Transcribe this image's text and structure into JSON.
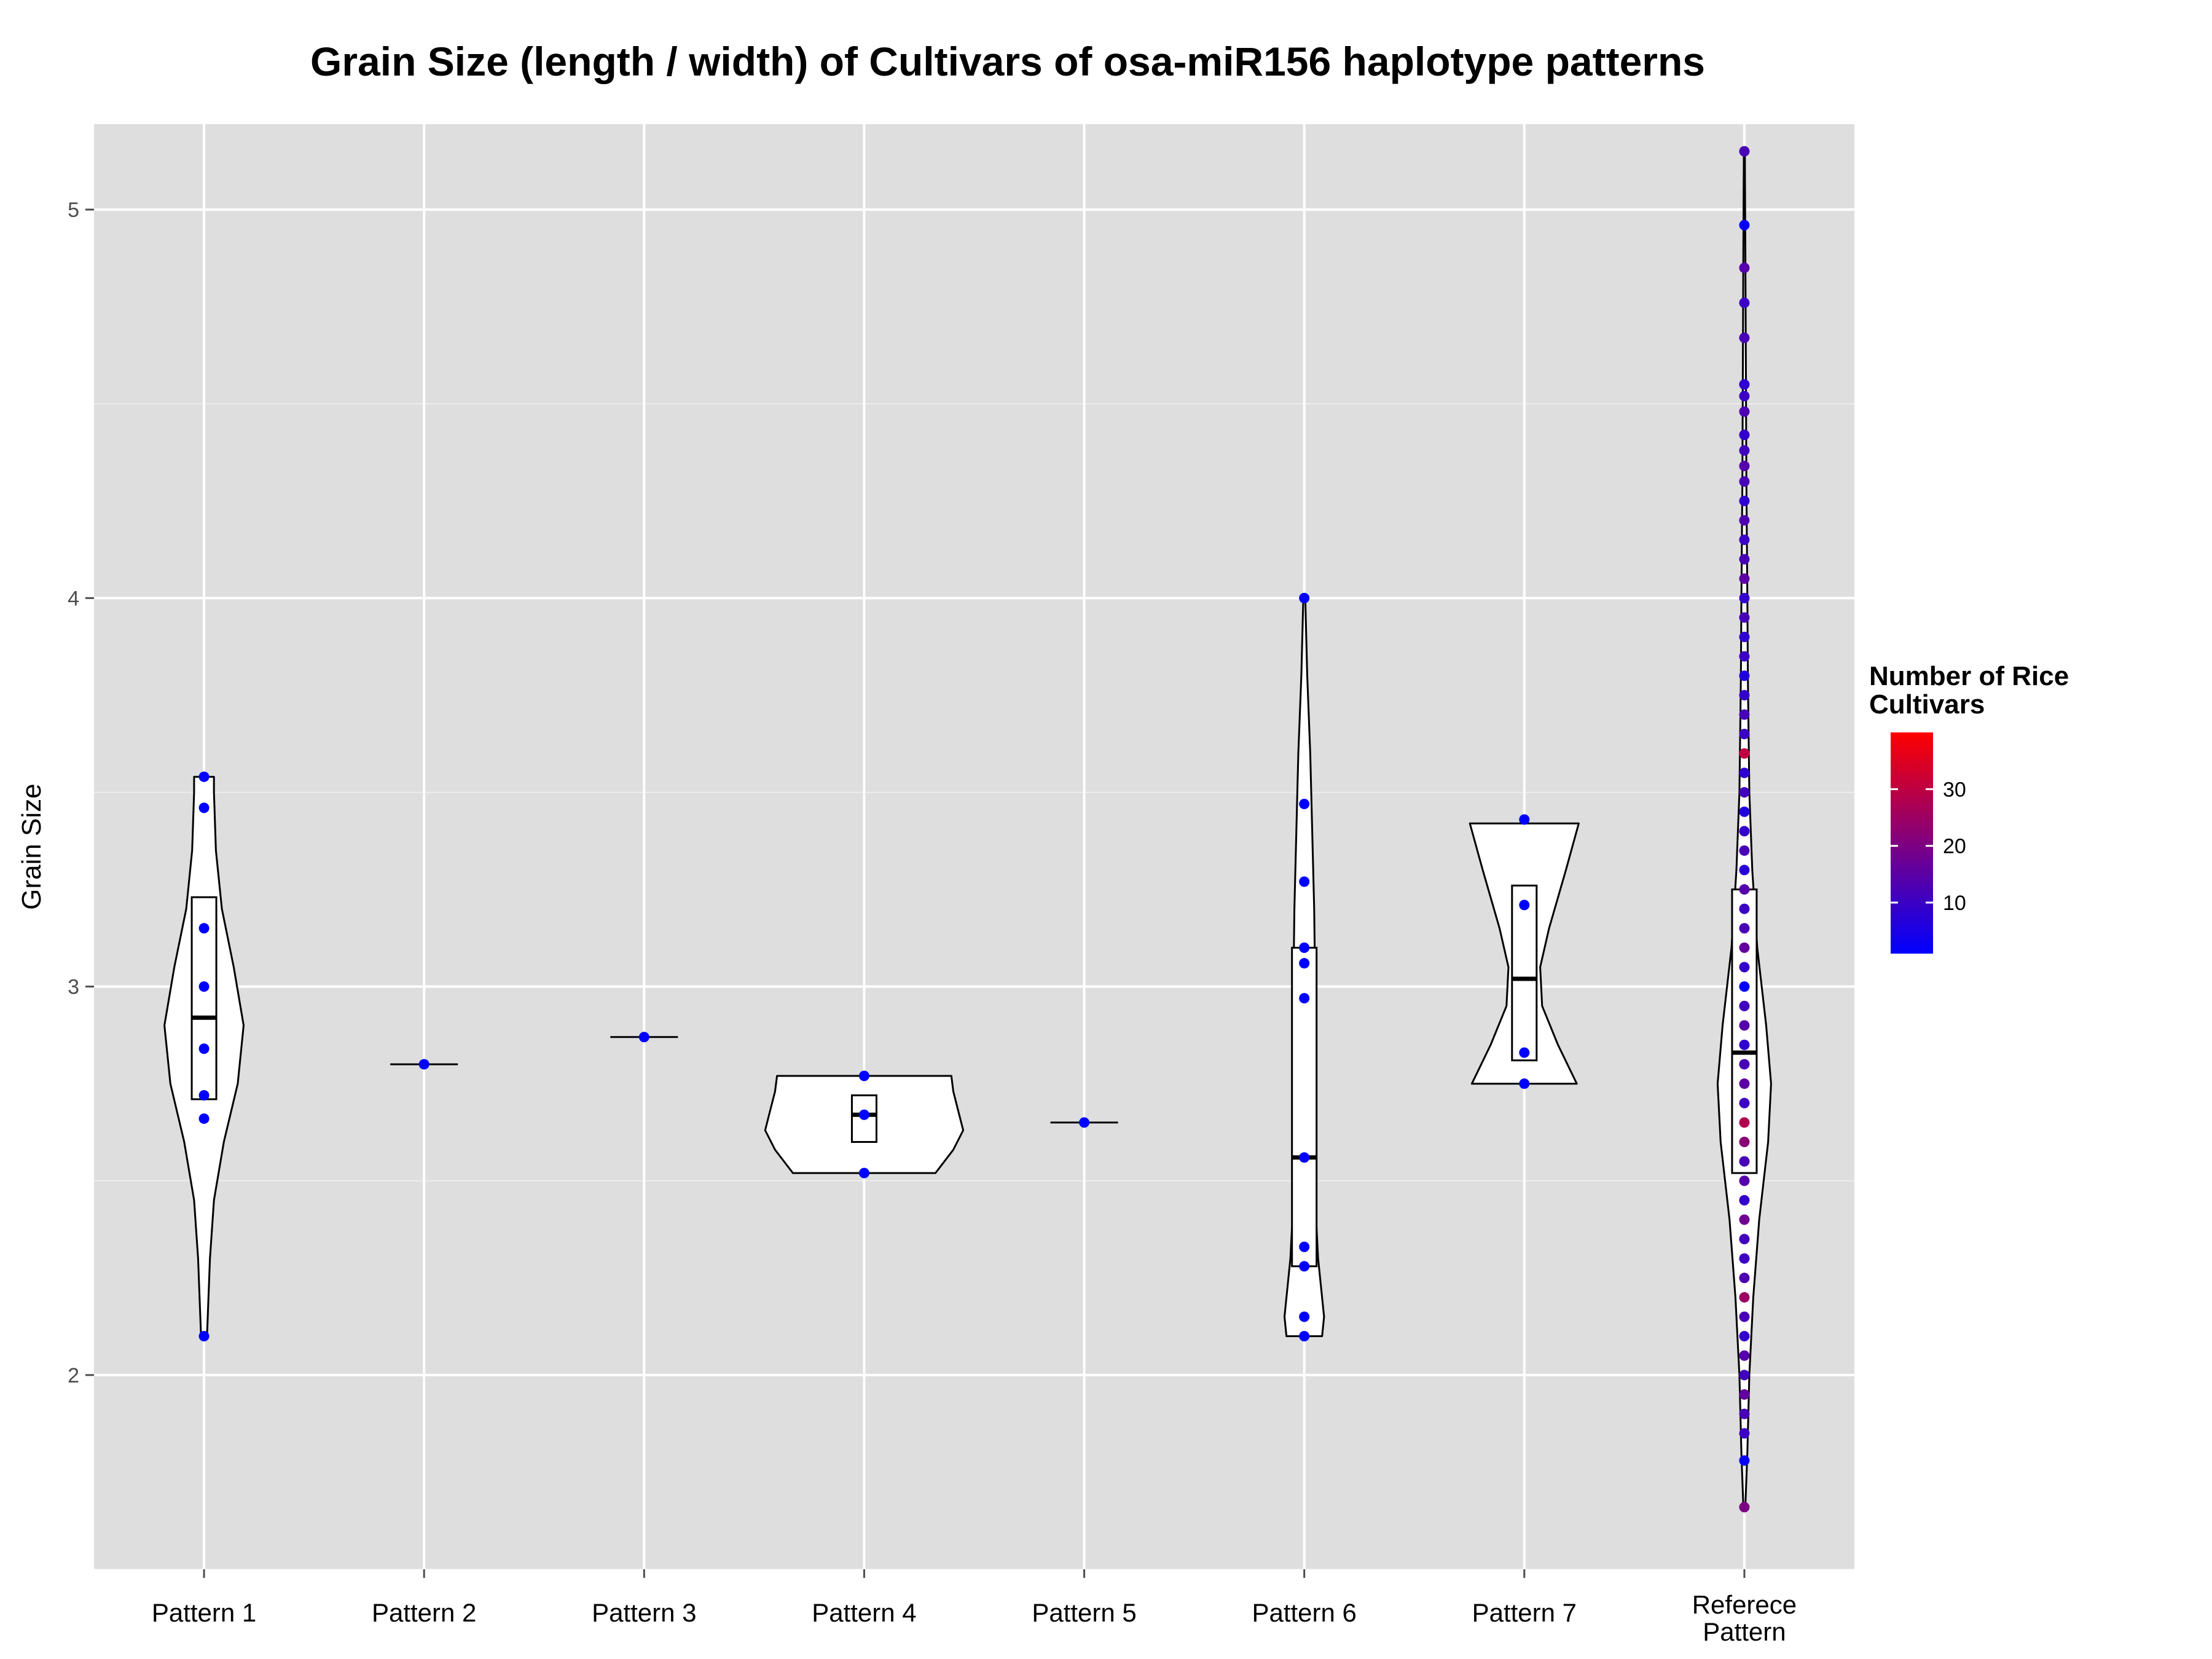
{
  "chart_data": {
    "type": "violin",
    "title": "Grain Size (length / width) of Cultivars of osa-miR156 haplotype patterns",
    "xlabel": "",
    "ylabel": "Grain Size",
    "ylim": [
      1.5,
      5.22
    ],
    "y_ticks": [
      2,
      3,
      4,
      5
    ],
    "grid": true,
    "background": "#dedede",
    "point_color_low": "#0000ff",
    "point_color_high": "#ff0000",
    "categories": [
      "Pattern 1",
      "Pattern 2",
      "Pattern 3",
      "Pattern 4",
      "Pattern 5",
      "Pattern 6",
      "Pattern 7",
      "Referece Pattern"
    ],
    "legend": {
      "title": "Number of Rice Cultivars",
      "position": "right",
      "range": [
        1,
        40
      ],
      "ticks": [
        10,
        20,
        30
      ]
    },
    "series": [
      {
        "category": "Pattern 1",
        "box": {
          "q1": 2.71,
          "median": 2.92,
          "q3": 3.23
        },
        "violin": [
          [
            2.1,
            0.03
          ],
          [
            2.3,
            0.06
          ],
          [
            2.45,
            0.1
          ],
          [
            2.6,
            0.2
          ],
          [
            2.75,
            0.34
          ],
          [
            2.9,
            0.4
          ],
          [
            3.05,
            0.3
          ],
          [
            3.2,
            0.18
          ],
          [
            3.35,
            0.12
          ],
          [
            3.5,
            0.1
          ],
          [
            3.54,
            0.1
          ]
        ],
        "points": [
          {
            "y": 3.54,
            "n": 1
          },
          {
            "y": 3.46,
            "n": 1
          },
          {
            "y": 3.15,
            "n": 1
          },
          {
            "y": 3.0,
            "n": 1
          },
          {
            "y": 2.84,
            "n": 1
          },
          {
            "y": 2.72,
            "n": 1
          },
          {
            "y": 2.66,
            "n": 1
          },
          {
            "y": 2.1,
            "n": 1
          }
        ]
      },
      {
        "category": "Pattern 2",
        "box": {
          "q1": 2.8,
          "median": 2.8,
          "q3": 2.8
        },
        "violin": [],
        "points": [
          {
            "y": 2.8,
            "n": 1
          }
        ]
      },
      {
        "category": "Pattern 3",
        "box": {
          "q1": 2.87,
          "median": 2.87,
          "q3": 2.87
        },
        "violin": [],
        "points": [
          {
            "y": 2.87,
            "n": 1
          }
        ]
      },
      {
        "category": "Pattern 4",
        "box": {
          "q1": 2.6,
          "median": 2.67,
          "q3": 2.72
        },
        "violin": [
          [
            2.52,
            0.72
          ],
          [
            2.58,
            0.9
          ],
          [
            2.63,
            1.0
          ],
          [
            2.68,
            0.95
          ],
          [
            2.73,
            0.9
          ],
          [
            2.77,
            0.88
          ]
        ],
        "points": [
          {
            "y": 2.77,
            "n": 1
          },
          {
            "y": 2.67,
            "n": 1
          },
          {
            "y": 2.52,
            "n": 1
          }
        ]
      },
      {
        "category": "Pattern 5",
        "box": {
          "q1": 2.65,
          "median": 2.65,
          "q3": 2.65
        },
        "violin": [],
        "points": [
          {
            "y": 2.65,
            "n": 1
          }
        ]
      },
      {
        "category": "Pattern 6",
        "box": {
          "q1": 2.28,
          "median": 2.56,
          "q3": 3.1
        },
        "violin": [
          [
            2.1,
            0.18
          ],
          [
            2.15,
            0.2
          ],
          [
            2.3,
            0.14
          ],
          [
            2.45,
            0.11
          ],
          [
            2.6,
            0.1
          ],
          [
            2.8,
            0.1
          ],
          [
            3.0,
            0.11
          ],
          [
            3.2,
            0.1
          ],
          [
            3.4,
            0.08
          ],
          [
            3.6,
            0.06
          ],
          [
            3.8,
            0.03
          ],
          [
            4.0,
            0.01
          ]
        ],
        "points": [
          {
            "y": 4.0,
            "n": 1
          },
          {
            "y": 3.47,
            "n": 1
          },
          {
            "y": 3.27,
            "n": 1
          },
          {
            "y": 3.1,
            "n": 1
          },
          {
            "y": 3.06,
            "n": 1
          },
          {
            "y": 2.97,
            "n": 1
          },
          {
            "y": 2.56,
            "n": 1
          },
          {
            "y": 2.33,
            "n": 1
          },
          {
            "y": 2.28,
            "n": 1
          },
          {
            "y": 2.15,
            "n": 1
          },
          {
            "y": 2.1,
            "n": 1
          }
        ]
      },
      {
        "category": "Pattern 7",
        "box": {
          "q1": 2.81,
          "median": 3.02,
          "q3": 3.26
        },
        "violin": [
          [
            2.75,
            0.53
          ],
          [
            2.85,
            0.34
          ],
          [
            2.95,
            0.18
          ],
          [
            3.05,
            0.16
          ],
          [
            3.15,
            0.25
          ],
          [
            3.3,
            0.42
          ],
          [
            3.42,
            0.55
          ]
        ],
        "points": [
          {
            "y": 3.43,
            "n": 1
          },
          {
            "y": 3.21,
            "n": 1
          },
          {
            "y": 2.83,
            "n": 1
          },
          {
            "y": 2.75,
            "n": 1
          }
        ]
      },
      {
        "category": "Referece Pattern",
        "box": {
          "q1": 2.52,
          "median": 2.83,
          "q3": 3.25
        },
        "violin": [
          [
            1.66,
            0.01
          ],
          [
            1.8,
            0.03
          ],
          [
            2.0,
            0.05
          ],
          [
            2.2,
            0.09
          ],
          [
            2.4,
            0.15
          ],
          [
            2.6,
            0.24
          ],
          [
            2.75,
            0.27
          ],
          [
            2.9,
            0.22
          ],
          [
            3.1,
            0.13
          ],
          [
            3.3,
            0.08
          ],
          [
            3.5,
            0.05
          ],
          [
            3.8,
            0.035
          ],
          [
            4.0,
            0.03
          ],
          [
            4.3,
            0.02
          ],
          [
            4.6,
            0.015
          ],
          [
            4.9,
            0.01
          ],
          [
            5.15,
            0.005
          ]
        ],
        "points": [
          {
            "y": 5.15,
            "n": 12
          },
          {
            "y": 4.96,
            "n": 2
          },
          {
            "y": 4.85,
            "n": 14
          },
          {
            "y": 4.76,
            "n": 10
          },
          {
            "y": 4.67,
            "n": 12
          },
          {
            "y": 4.55,
            "n": 8
          },
          {
            "y": 4.52,
            "n": 10
          },
          {
            "y": 4.48,
            "n": 13
          },
          {
            "y": 4.42,
            "n": 9
          },
          {
            "y": 4.38,
            "n": 11
          },
          {
            "y": 4.34,
            "n": 14
          },
          {
            "y": 4.3,
            "n": 12
          },
          {
            "y": 4.25,
            "n": 8
          },
          {
            "y": 4.2,
            "n": 13
          },
          {
            "y": 4.15,
            "n": 10
          },
          {
            "y": 4.1,
            "n": 12
          },
          {
            "y": 4.05,
            "n": 15
          },
          {
            "y": 4.0,
            "n": 9
          },
          {
            "y": 3.95,
            "n": 12
          },
          {
            "y": 3.9,
            "n": 8
          },
          {
            "y": 3.85,
            "n": 10
          },
          {
            "y": 3.8,
            "n": 6
          },
          {
            "y": 3.75,
            "n": 9
          },
          {
            "y": 3.7,
            "n": 12
          },
          {
            "y": 3.65,
            "n": 10
          },
          {
            "y": 3.6,
            "n": 30
          },
          {
            "y": 3.55,
            "n": 8
          },
          {
            "y": 3.5,
            "n": 11
          },
          {
            "y": 3.45,
            "n": 6
          },
          {
            "y": 3.4,
            "n": 9
          },
          {
            "y": 3.35,
            "n": 12
          },
          {
            "y": 3.3,
            "n": 7
          },
          {
            "y": 3.25,
            "n": 14
          },
          {
            "y": 3.2,
            "n": 10
          },
          {
            "y": 3.15,
            "n": 12
          },
          {
            "y": 3.1,
            "n": 16
          },
          {
            "y": 3.05,
            "n": 9
          },
          {
            "y": 3.0,
            "n": 1
          },
          {
            "y": 2.95,
            "n": 11
          },
          {
            "y": 2.9,
            "n": 14
          },
          {
            "y": 2.85,
            "n": 8
          },
          {
            "y": 2.8,
            "n": 12
          },
          {
            "y": 2.75,
            "n": 15
          },
          {
            "y": 2.7,
            "n": 10
          },
          {
            "y": 2.65,
            "n": 28
          },
          {
            "y": 2.6,
            "n": 22
          },
          {
            "y": 2.55,
            "n": 12
          },
          {
            "y": 2.5,
            "n": 14
          },
          {
            "y": 2.45,
            "n": 9
          },
          {
            "y": 2.4,
            "n": 18
          },
          {
            "y": 2.35,
            "n": 11
          },
          {
            "y": 2.3,
            "n": 10
          },
          {
            "y": 2.25,
            "n": 13
          },
          {
            "y": 2.2,
            "n": 25
          },
          {
            "y": 2.15,
            "n": 12
          },
          {
            "y": 2.1,
            "n": 9
          },
          {
            "y": 2.05,
            "n": 14
          },
          {
            "y": 2.0,
            "n": 11
          },
          {
            "y": 1.95,
            "n": 16
          },
          {
            "y": 1.9,
            "n": 12
          },
          {
            "y": 1.85,
            "n": 10
          },
          {
            "y": 1.78,
            "n": 2
          },
          {
            "y": 1.66,
            "n": 20
          }
        ]
      }
    ]
  }
}
